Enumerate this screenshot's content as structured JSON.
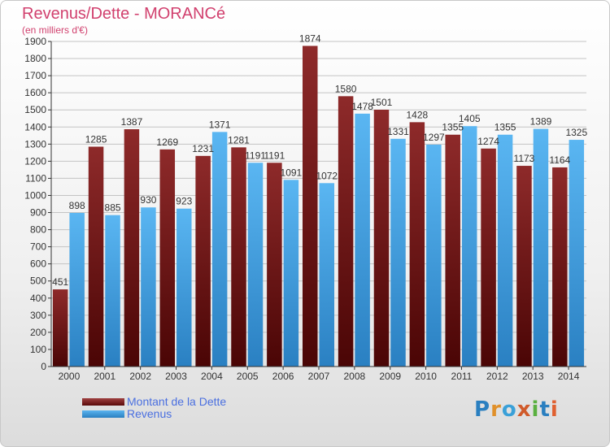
{
  "title": "Revenus/Dette - MORANCé",
  "subtitle": "(en milliers d'€)",
  "logo": {
    "text": "Proxiti",
    "colors": [
      "#2a7fc0",
      "#e0902a",
      "#3aa0d8",
      "#d05a2a",
      "#5ab040",
      "#2a7fc0",
      "#e06030"
    ]
  },
  "colors": {
    "dette": "#7a1e1e",
    "revenus": "#4aa6e8",
    "title": "#d1406e",
    "legend_text": "#4a6fe0"
  },
  "chart_data": {
    "type": "bar",
    "title": "Revenus/Dette - MORANCé",
    "subtitle": "(en milliers d'€)",
    "categories": [
      "2000",
      "2001",
      "2002",
      "2003",
      "2004",
      "2005",
      "2006",
      "2007",
      "2008",
      "2009",
      "2010",
      "2011",
      "2012",
      "2013",
      "2014"
    ],
    "series": [
      {
        "name": "Montant de la Dette",
        "values": [
          451,
          1285,
          1387,
          1269,
          1231,
          1281,
          1191,
          1874,
          1580,
          1501,
          1428,
          1355,
          1274,
          1173,
          1164
        ]
      },
      {
        "name": "Revenus",
        "values": [
          898,
          885,
          930,
          923,
          1371,
          1191,
          1091,
          1072,
          1478,
          1331,
          1297,
          1405,
          1355,
          1389,
          1325
        ]
      }
    ],
    "ylim": [
      0,
      1900
    ],
    "yticks": [
      0,
      100,
      200,
      300,
      400,
      500,
      600,
      700,
      800,
      900,
      1000,
      1100,
      1200,
      1300,
      1400,
      1500,
      1600,
      1700,
      1800,
      1900
    ],
    "grid": true,
    "legend_position": "bottom-left"
  }
}
